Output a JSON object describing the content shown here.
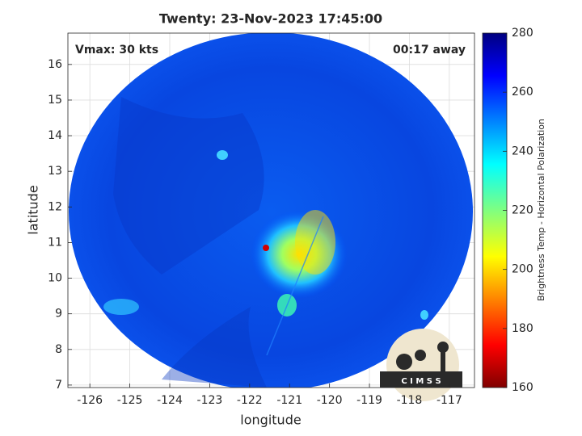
{
  "chart_data": {
    "type": "map",
    "title": "Twenty: 23-Nov-2023 17:45:00",
    "xlabel": "longitude",
    "ylabel": "latitude",
    "annotations": [
      "Vmax: 30 kts",
      "00:17 away"
    ],
    "logo": "C I M S S",
    "xlim": [
      -126.55,
      -116.37
    ],
    "ylim": [
      6.93,
      16.88
    ],
    "xticks": [
      -126,
      -125,
      -124,
      -123,
      -122,
      -121,
      -120,
      -119,
      -118,
      -117
    ],
    "yticks": [
      7,
      8,
      9,
      10,
      11,
      12,
      13,
      14,
      15,
      16
    ],
    "grid": true,
    "colorbar": {
      "label": "Brightness Temp - Horizontal Polarization",
      "colormap": "jet",
      "lim": [
        160,
        280
      ],
      "ticks": [
        160,
        180,
        200,
        220,
        240,
        260,
        280
      ]
    }
  }
}
